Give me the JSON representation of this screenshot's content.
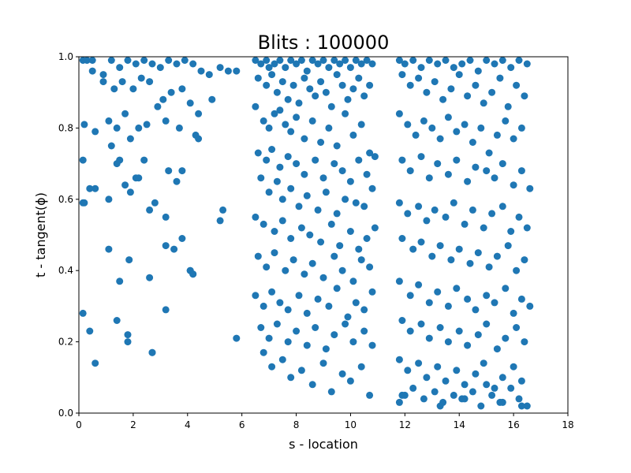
{
  "chart_data": {
    "type": "scatter",
    "title": "Blits : 100000",
    "xlabel": "s - location",
    "ylabel": "t - tangent(ϕ)",
    "xlim": [
      0,
      18
    ],
    "ylim": [
      0,
      1
    ],
    "xticks": [
      "0",
      "2",
      "4",
      "6",
      "8",
      "10",
      "12",
      "14",
      "16",
      "18"
    ],
    "yticks": [
      "0.0",
      "0.2",
      "0.4",
      "0.6",
      "0.8",
      "1.0"
    ],
    "grid": false,
    "color": "#1f77b4",
    "series": [
      {
        "x": [
          0.15,
          0.3,
          0.5,
          0.9,
          1.2,
          1.5,
          1.8,
          2.1,
          2.4,
          2.7,
          3.0,
          3.3,
          3.6,
          3.9,
          4.2,
          4.5,
          4.8,
          5.2,
          5.5,
          5.8,
          0.5,
          0.9,
          1.3,
          1.6,
          2.0,
          2.3,
          2.6,
          3.1,
          3.4,
          3.8,
          4.1,
          4.4,
          4.9,
          0.2,
          0.6,
          1.1,
          1.4,
          1.7,
          2.2,
          2.5,
          2.9,
          3.2,
          3.7,
          4.3,
          0.15,
          1.2,
          1.4,
          1.9,
          2.4,
          3.3,
          3.8,
          4.4,
          0.15,
          0.6,
          1.7,
          2.1,
          3.6,
          0.2,
          0.4,
          1.1,
          1.5,
          1.9,
          2.2,
          2.6,
          2.8,
          3.2,
          3.8,
          4.1,
          4.2,
          5.2,
          5.3,
          1.1,
          1.5,
          1.85,
          2.6,
          3.2,
          3.5,
          4.1,
          4.2,
          0.15,
          0.4,
          1.4,
          1.8,
          2.7,
          3.2,
          5.8,
          0.6,
          1.8,
          2.7
        ],
        "y": [
          0.99,
          0.99,
          0.99,
          0.95,
          0.99,
          0.97,
          0.99,
          0.98,
          0.99,
          0.98,
          0.97,
          0.99,
          0.98,
          0.99,
          0.98,
          0.96,
          0.95,
          0.97,
          0.96,
          0.96,
          0.96,
          0.93,
          0.91,
          0.93,
          0.91,
          0.94,
          0.93,
          0.88,
          0.9,
          0.91,
          0.87,
          0.84,
          0.88,
          0.81,
          0.79,
          0.82,
          0.8,
          0.84,
          0.8,
          0.81,
          0.86,
          0.82,
          0.8,
          0.78,
          0.71,
          0.75,
          0.7,
          0.77,
          0.71,
          0.68,
          0.68,
          0.77,
          0.59,
          0.63,
          0.64,
          0.66,
          0.65,
          0.59,
          0.63,
          0.6,
          0.71,
          0.62,
          0.66,
          0.57,
          0.59,
          0.55,
          0.49,
          0.4,
          0.39,
          0.54,
          0.57,
          0.46,
          0.37,
          0.43,
          0.38,
          0.47,
          0.46,
          0.4,
          0.39,
          0.28,
          0.23,
          0.26,
          0.2,
          0.17,
          0.29,
          0.21,
          0.14,
          0.22,
          0.17
        ]
      },
      {
        "x": [
          6.5,
          6.7,
          6.9,
          7.0,
          7.2,
          7.4,
          7.6,
          7.8,
          8.0,
          8.2,
          8.4,
          8.6,
          8.8,
          9.0,
          9.2,
          9.4,
          9.6,
          9.8,
          10.0,
          10.2,
          10.4,
          10.6,
          10.8,
          6.6,
          6.9,
          7.1,
          7.3,
          7.5,
          7.7,
          7.9,
          8.1,
          8.3,
          8.5,
          8.7,
          8.9,
          9.1,
          9.3,
          9.5,
          9.7,
          9.9,
          10.1,
          10.3,
          10.5,
          10.7,
          6.5,
          6.8,
          7.0,
          7.2,
          7.4,
          7.6,
          7.8,
          8.0,
          8.3,
          8.6,
          8.9,
          9.2,
          9.5,
          9.8,
          10.1,
          10.4,
          10.7,
          6.6,
          6.9,
          7.1,
          7.4,
          7.7,
          8.0,
          8.3,
          8.7,
          9.0,
          9.4,
          9.7,
          10.0,
          10.3,
          10.6,
          10.9,
          6.7,
          7.0,
          7.3,
          7.5,
          7.8,
          8.1,
          8.4,
          8.8,
          9.1,
          9.5,
          9.8,
          10.2,
          10.5,
          10.8,
          6.5,
          6.8,
          7.2,
          7.5,
          7.8,
          8.2,
          8.5,
          8.9,
          9.3,
          9.6,
          10.0,
          10.3,
          10.6,
          10.9,
          6.6,
          6.9,
          7.2,
          7.6,
          7.9,
          8.3,
          8.6,
          9.0,
          9.4,
          9.7,
          10.1,
          10.4,
          10.7,
          6.5,
          6.8,
          7.1,
          7.4,
          7.7,
          8.1,
          8.4,
          8.8,
          9.2,
          9.5,
          9.9,
          10.2,
          10.5,
          10.8,
          6.7,
          7.0,
          7.3,
          7.7,
          8.0,
          8.4,
          8.7,
          9.1,
          9.4,
          9.8,
          10.1,
          10.5,
          10.8,
          6.8,
          7.1,
          7.5,
          7.8,
          8.2,
          8.6,
          9.0,
          9.3,
          9.7,
          10.0,
          10.4,
          10.7
        ],
        "y": [
          0.99,
          0.98,
          0.99,
          0.97,
          0.98,
          0.99,
          0.97,
          0.99,
          0.98,
          0.99,
          0.96,
          0.99,
          0.98,
          0.99,
          0.97,
          0.99,
          0.98,
          0.99,
          0.97,
          0.99,
          0.98,
          0.99,
          0.98,
          0.94,
          0.92,
          0.95,
          0.9,
          0.93,
          0.88,
          0.92,
          0.87,
          0.94,
          0.91,
          0.89,
          0.93,
          0.9,
          0.86,
          0.95,
          0.92,
          0.88,
          0.91,
          0.94,
          0.89,
          0.92,
          0.86,
          0.82,
          0.8,
          0.84,
          0.85,
          0.81,
          0.79,
          0.83,
          0.77,
          0.82,
          0.76,
          0.8,
          0.75,
          0.84,
          0.78,
          0.81,
          0.73,
          0.73,
          0.71,
          0.74,
          0.69,
          0.72,
          0.7,
          0.67,
          0.71,
          0.66,
          0.7,
          0.68,
          0.65,
          0.71,
          0.67,
          0.72,
          0.66,
          0.62,
          0.65,
          0.6,
          0.63,
          0.58,
          0.61,
          0.57,
          0.62,
          0.56,
          0.6,
          0.59,
          0.58,
          0.63,
          0.55,
          0.53,
          0.51,
          0.54,
          0.49,
          0.52,
          0.5,
          0.48,
          0.53,
          0.47,
          0.51,
          0.46,
          0.49,
          0.52,
          0.44,
          0.41,
          0.45,
          0.4,
          0.43,
          0.39,
          0.42,
          0.38,
          0.44,
          0.4,
          0.37,
          0.43,
          0.41,
          0.33,
          0.3,
          0.34,
          0.31,
          0.29,
          0.33,
          0.28,
          0.32,
          0.3,
          0.35,
          0.27,
          0.31,
          0.29,
          0.34,
          0.24,
          0.21,
          0.25,
          0.2,
          0.23,
          0.19,
          0.24,
          0.18,
          0.22,
          0.25,
          0.2,
          0.23,
          0.19,
          0.17,
          0.13,
          0.15,
          0.1,
          0.12,
          0.08,
          0.14,
          0.06,
          0.11,
          0.09,
          0.13,
          0.05
        ]
      },
      {
        "x": [
          11.8,
          12.0,
          12.3,
          12.6,
          12.9,
          13.2,
          13.5,
          13.8,
          14.1,
          14.4,
          14.7,
          15.0,
          15.3,
          15.6,
          15.9,
          16.2,
          16.5,
          11.9,
          12.2,
          12.5,
          12.8,
          13.1,
          13.4,
          13.7,
          14.0,
          14.3,
          14.6,
          14.9,
          15.2,
          15.5,
          15.8,
          16.1,
          16.4,
          11.8,
          12.1,
          12.4,
          12.7,
          13.0,
          13.3,
          13.6,
          13.9,
          14.2,
          14.5,
          14.8,
          15.1,
          15.4,
          15.7,
          16.0,
          16.3,
          11.9,
          12.2,
          12.6,
          12.9,
          13.2,
          13.6,
          13.9,
          14.3,
          14.6,
          15.0,
          15.3,
          15.6,
          16.0,
          16.3,
          16.6,
          11.8,
          12.1,
          12.5,
          12.8,
          13.1,
          13.5,
          13.8,
          14.2,
          14.5,
          14.9,
          15.2,
          15.6,
          15.9,
          16.2,
          16.5,
          11.9,
          12.3,
          12.6,
          13.0,
          13.3,
          13.7,
          14.0,
          14.4,
          14.7,
          15.1,
          15.4,
          15.8,
          16.1,
          16.4,
          11.8,
          12.2,
          12.5,
          12.9,
          13.2,
          13.6,
          13.9,
          14.3,
          14.6,
          15.0,
          15.3,
          15.7,
          16.0,
          16.3,
          16.6,
          11.9,
          12.2,
          12.6,
          12.9,
          13.3,
          13.6,
          14.0,
          14.3,
          14.7,
          15.0,
          15.4,
          15.7,
          16.1,
          16.4,
          11.8,
          12.1,
          12.5,
          12.8,
          13.2,
          13.5,
          13.9,
          14.2,
          14.6,
          14.9,
          15.3,
          15.6,
          16.0,
          16.3,
          11.9,
          12.3,
          12.7,
          13.1,
          13.4,
          13.8,
          14.1,
          14.5,
          14.8,
          15.2,
          15.5,
          15.9,
          16.2,
          16.5,
          11.8,
          12.0,
          13.3,
          14.2,
          15.0,
          15.6,
          16.3
        ],
        "y": [
          0.99,
          0.98,
          0.99,
          0.97,
          0.99,
          0.98,
          0.99,
          0.97,
          0.98,
          0.99,
          0.96,
          0.99,
          0.98,
          0.99,
          0.97,
          0.99,
          0.98,
          0.95,
          0.92,
          0.94,
          0.9,
          0.93,
          0.88,
          0.91,
          0.95,
          0.89,
          0.92,
          0.87,
          0.9,
          0.94,
          0.86,
          0.92,
          0.89,
          0.84,
          0.81,
          0.78,
          0.82,
          0.8,
          0.77,
          0.83,
          0.79,
          0.81,
          0.76,
          0.8,
          0.73,
          0.78,
          0.82,
          0.77,
          0.8,
          0.71,
          0.68,
          0.72,
          0.66,
          0.7,
          0.67,
          0.71,
          0.65,
          0.69,
          0.68,
          0.66,
          0.7,
          0.64,
          0.68,
          0.63,
          0.59,
          0.56,
          0.58,
          0.54,
          0.57,
          0.55,
          0.59,
          0.53,
          0.57,
          0.52,
          0.56,
          0.58,
          0.51,
          0.55,
          0.52,
          0.49,
          0.46,
          0.48,
          0.44,
          0.47,
          0.43,
          0.46,
          0.42,
          0.45,
          0.41,
          0.44,
          0.47,
          0.4,
          0.43,
          0.37,
          0.33,
          0.36,
          0.31,
          0.34,
          0.3,
          0.35,
          0.32,
          0.29,
          0.33,
          0.31,
          0.35,
          0.28,
          0.32,
          0.3,
          0.26,
          0.23,
          0.25,
          0.21,
          0.24,
          0.2,
          0.23,
          0.19,
          0.22,
          0.25,
          0.18,
          0.21,
          0.24,
          0.2,
          0.15,
          0.12,
          0.14,
          0.1,
          0.13,
          0.09,
          0.12,
          0.08,
          0.11,
          0.14,
          0.07,
          0.1,
          0.13,
          0.09,
          0.05,
          0.07,
          0.04,
          0.06,
          0.03,
          0.05,
          0.04,
          0.06,
          0.02,
          0.05,
          0.03,
          0.07,
          0.04,
          0.02,
          0.03,
          0.05,
          0.02,
          0.04,
          0.08,
          0.03,
          0.02
        ]
      }
    ]
  }
}
